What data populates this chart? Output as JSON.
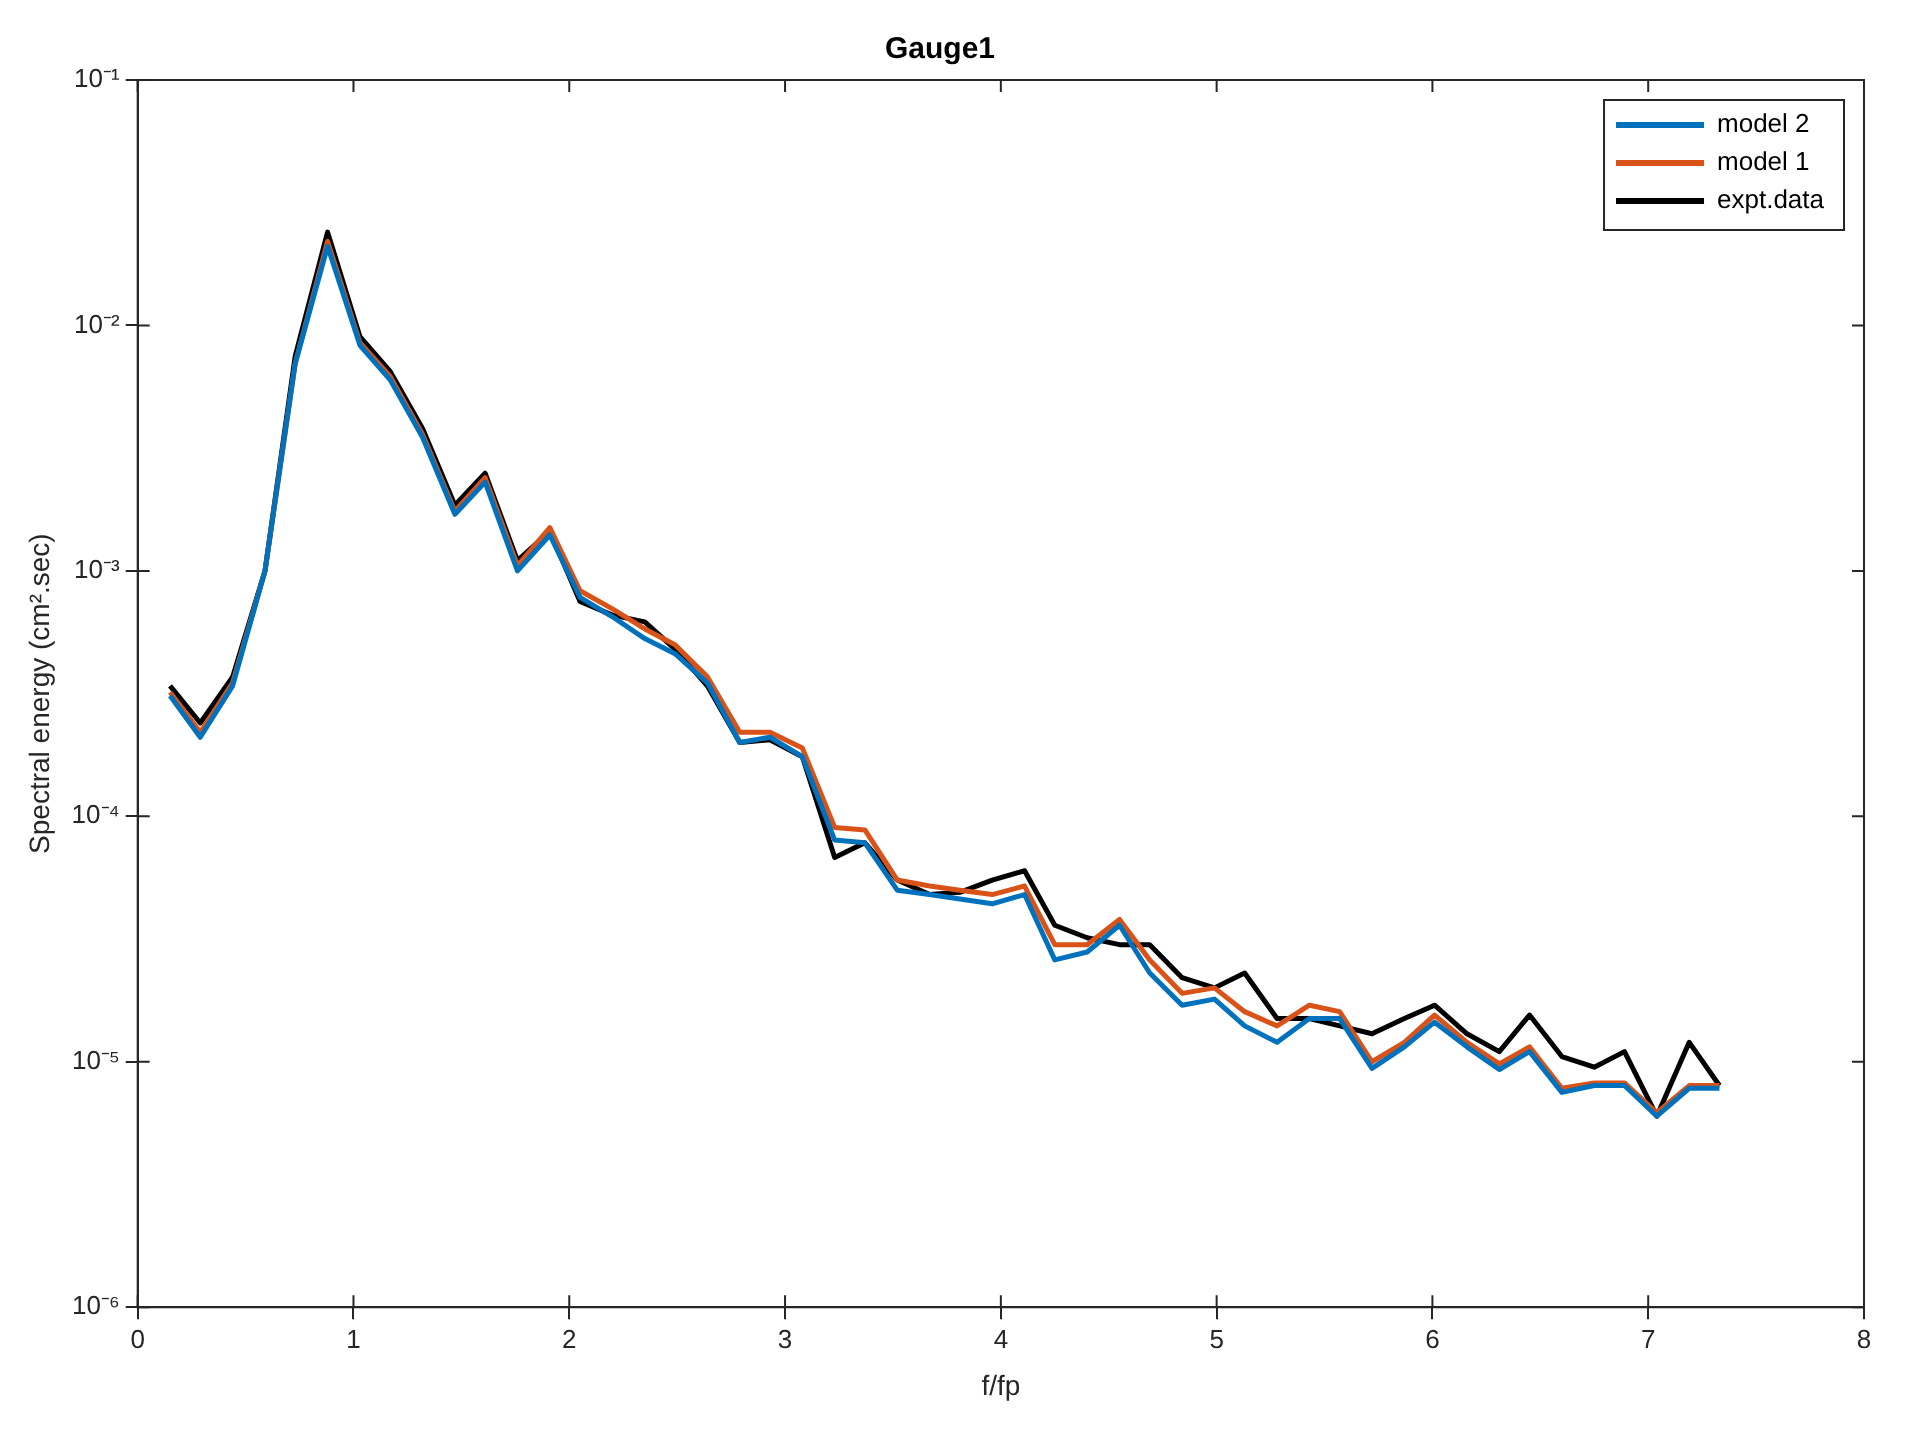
{
  "chart_data": {
    "type": "line",
    "title": "Gauge1",
    "xlabel": "f/fp",
    "ylabel": "Spectral energy (cm².sec)",
    "log": "y",
    "grid": false,
    "legend": "top right",
    "x": [
      0.15,
      0.29,
      0.44,
      0.59,
      0.73,
      0.88,
      1.03,
      1.17,
      1.32,
      1.47,
      1.61,
      1.76,
      1.91,
      2.05,
      2.2,
      2.35,
      2.49,
      2.64,
      2.79,
      2.93,
      3.08,
      3.23,
      3.37,
      3.52,
      3.67,
      3.81,
      3.96,
      4.11,
      4.25,
      4.4,
      4.55,
      4.69,
      4.84,
      4.99,
      5.13,
      5.28,
      5.43,
      5.57,
      5.72,
      5.87,
      6.01,
      6.16,
      6.31,
      6.45,
      6.6,
      6.75,
      6.89,
      7.04,
      7.19,
      7.33
    ],
    "xlim": [
      0,
      8
    ],
    "xticks": [
      0,
      1,
      2,
      3,
      4,
      5,
      6,
      7,
      8
    ],
    "ylim": [
      1e-06,
      0.1
    ],
    "yticks": [
      {
        "value": 1e-06,
        "label": "10⁻⁶"
      },
      {
        "value": 1e-05,
        "label": "10⁻⁵"
      },
      {
        "value": 0.0001,
        "label": "10⁻⁴"
      },
      {
        "value": 0.001,
        "label": "10⁻³"
      },
      {
        "value": 0.01,
        "label": "10⁻²"
      },
      {
        "value": 0.1,
        "label": "10⁻¹"
      }
    ],
    "series": [
      {
        "name": "model 2",
        "color": "#0072bd",
        "values": [
          0.00031,
          0.00021,
          0.00034,
          0.001,
          0.007,
          0.021,
          0.0083,
          0.006,
          0.0035,
          0.0017,
          0.0023,
          0.001,
          0.0014,
          0.00078,
          0.00065,
          0.00053,
          0.00046,
          0.00035,
          0.0002,
          0.00021,
          0.000175,
          8e-05,
          7.8e-05,
          5e-05,
          4.8e-05,
          4.6e-05,
          4.4e-05,
          4.8e-05,
          2.6e-05,
          2.8e-05,
          3.6e-05,
          2.3e-05,
          1.7e-05,
          1.8e-05,
          1.4e-05,
          1.2e-05,
          1.5e-05,
          1.5e-05,
          9.4e-06,
          1.15e-05,
          1.45e-05,
          1.15e-05,
          9.3e-06,
          1.1e-05,
          7.5e-06,
          8e-06,
          8e-06,
          6e-06,
          7.8e-06,
          7.8e-06
        ]
      },
      {
        "name": "model 1",
        "color": "#d95319",
        "values": [
          0.00032,
          0.00022,
          0.00035,
          0.001,
          0.007,
          0.022,
          0.0085,
          0.0062,
          0.0036,
          0.00175,
          0.0024,
          0.00105,
          0.0015,
          0.00083,
          0.0007,
          0.00058,
          0.0005,
          0.00037,
          0.00022,
          0.00022,
          0.00019,
          9e-05,
          8.8e-05,
          5.5e-05,
          5.2e-05,
          5e-05,
          4.8e-05,
          5.2e-05,
          3e-05,
          3e-05,
          3.8e-05,
          2.6e-05,
          1.9e-05,
          2e-05,
          1.6e-05,
          1.4e-05,
          1.7e-05,
          1.6e-05,
          1e-05,
          1.2e-05,
          1.55e-05,
          1.2e-05,
          9.8e-06,
          1.15e-05,
          7.8e-06,
          8.2e-06,
          8.2e-06,
          6.2e-06,
          8e-06,
          8e-06
        ]
      },
      {
        "name": "expt.data",
        "color": "#000000",
        "values": [
          0.00034,
          0.00024,
          0.00037,
          0.001,
          0.0075,
          0.024,
          0.009,
          0.0065,
          0.0038,
          0.00185,
          0.0025,
          0.0011,
          0.00145,
          0.00075,
          0.00066,
          0.00062,
          0.00048,
          0.00034,
          0.0002,
          0.000205,
          0.000175,
          6.8e-05,
          7.8e-05,
          5.5e-05,
          4.8e-05,
          4.9e-05,
          5.5e-05,
          6e-05,
          3.6e-05,
          3.2e-05,
          3e-05,
          3e-05,
          2.2e-05,
          2e-05,
          2.3e-05,
          1.5e-05,
          1.5e-05,
          1.4e-05,
          1.3e-05,
          1.5e-05,
          1.7e-05,
          1.3e-05,
          1.1e-05,
          1.55e-05,
          1.05e-05,
          9.5e-06,
          1.1e-05,
          6e-06,
          1.2e-05,
          8e-06
        ]
      }
    ]
  }
}
